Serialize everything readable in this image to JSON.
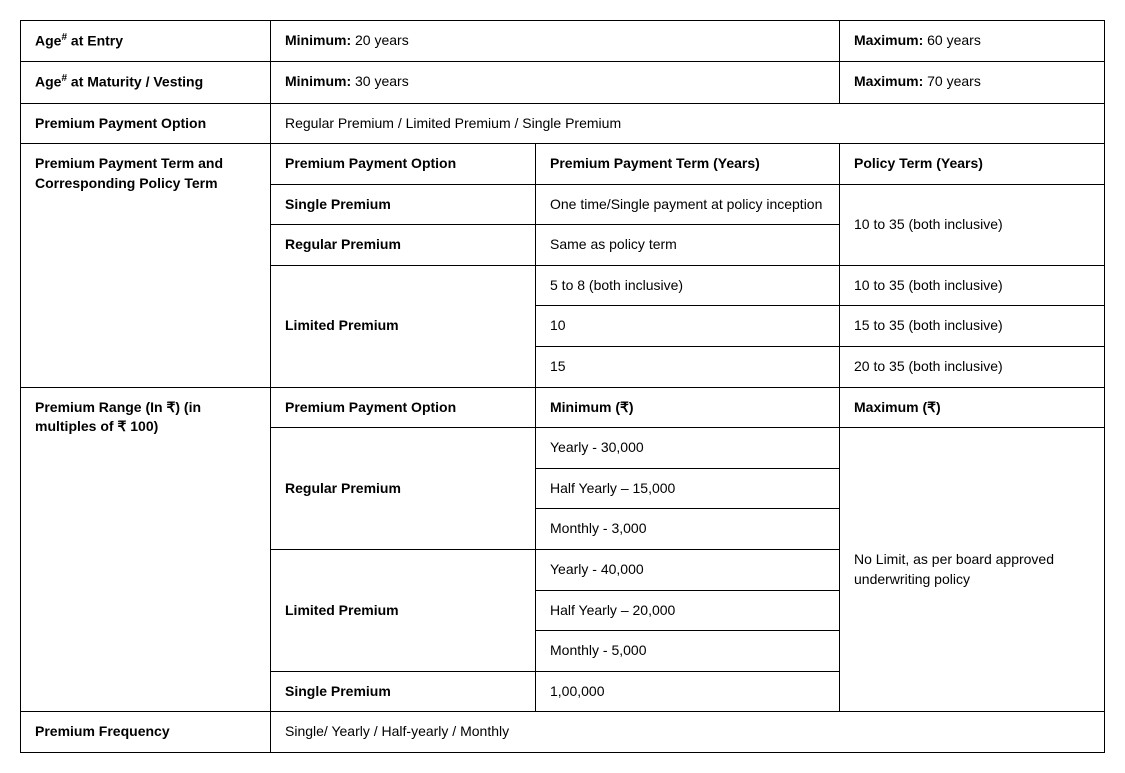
{
  "colwidths": [
    "250px",
    "265px",
    "",
    "265px"
  ],
  "row_age_entry": {
    "label_pre": "Age",
    "label_sup": "#",
    "label_post": " at Entry",
    "min_label": "Minimum: ",
    "min_val": "20 years",
    "max_label": "Maximum: ",
    "max_val": "60 years"
  },
  "row_age_maturity": {
    "label_pre": "Age",
    "label_sup": "#",
    "label_post": " at Maturity / Vesting",
    "min_label": "Minimum: ",
    "min_val": "30 years",
    "max_label": "Maximum: ",
    "max_val": "70 years"
  },
  "row_ppo": {
    "label": "Premium Payment Option",
    "value": "Regular Premium / Limited Premium / Single Premium"
  },
  "ppt": {
    "label": "Premium Payment Term and Corresponding Policy Term",
    "h1": "Premium Payment Option",
    "h2": "Premium Payment Term (Years)",
    "h3": "Policy Term (Years)",
    "single_opt": "Single Premium",
    "single_term": "One time/Single payment at policy inception",
    "regular_opt": "Regular Premium",
    "regular_term": "Same as policy term",
    "policy_10_35": "10 to 35 (both inclusive)",
    "limited_opt": "Limited Premium",
    "lp_t1": "5 to 8 (both inclusive)",
    "lp_p1": "10 to 35 (both inclusive)",
    "lp_t2": "10",
    "lp_p2": "15 to 35 (both inclusive)",
    "lp_t3": "15",
    "lp_p3": "20 to 35 (both inclusive)"
  },
  "prange": {
    "label": "Premium Range (In ₹) (in multiples of ₹ 100)",
    "h1": "Premium Payment Option",
    "h2": "Minimum (₹)",
    "h3": "Maximum (₹)",
    "rp_opt": "Regular Premium",
    "rp_1": "Yearly - 30,000",
    "rp_2": "Half Yearly – 15,000",
    "rp_3": "Monthly - 3,000",
    "lp_opt": "Limited Premium",
    "lp_1": "Yearly - 40,000",
    "lp_2": "Half Yearly – 20,000",
    "lp_3": "Monthly - 5,000",
    "sp_opt": "Single Premium",
    "sp_1": "1,00,000",
    "max": "No Limit, as per board approved underwriting policy"
  },
  "row_freq": {
    "label": "Premium Frequency",
    "value": "Single/ Yearly / Half-yearly / Monthly"
  }
}
